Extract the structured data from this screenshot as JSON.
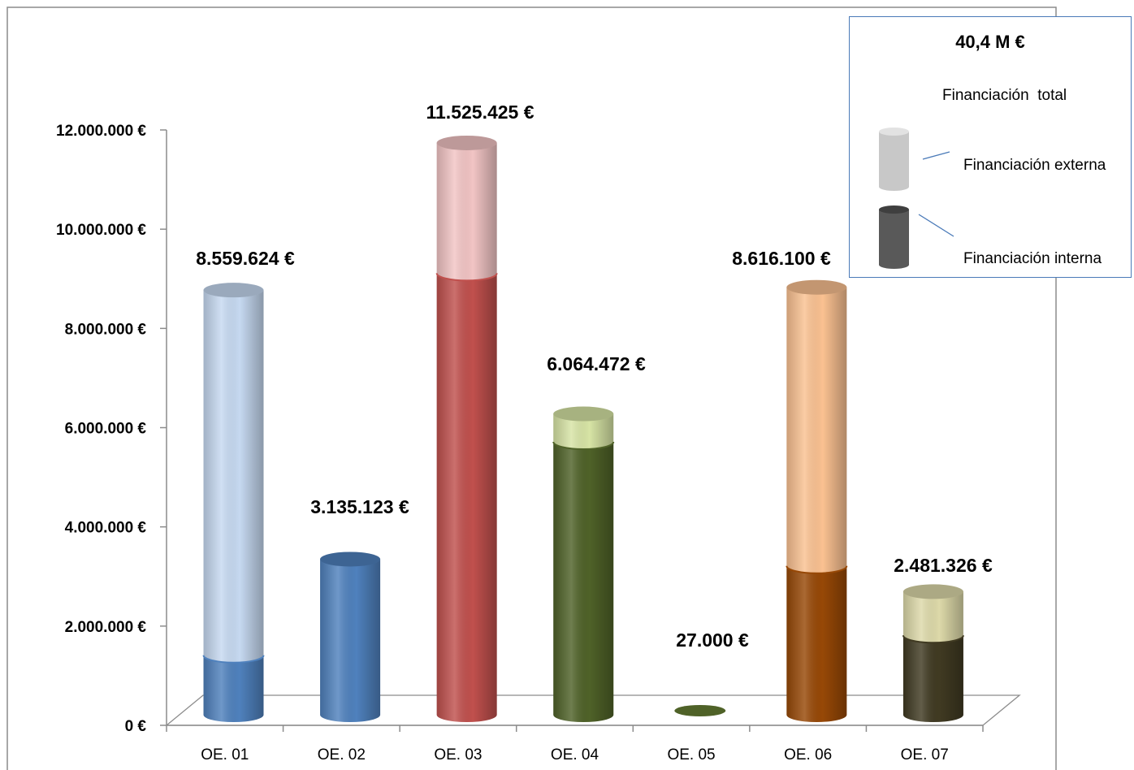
{
  "chart_data": {
    "type": "bar",
    "style": "3d-cylinder-stacked",
    "categories": [
      "OE. 01",
      "OE. 02",
      "OE. 03",
      "OE. 04",
      "OE. 05",
      "OE. 06",
      "OE. 07"
    ],
    "series": [
      {
        "name": "Financiación interna",
        "values": [
          1200000,
          3135123,
          8900000,
          5500000,
          27000,
          3000000,
          1600000
        ]
      },
      {
        "name": "Financiación externa",
        "values": [
          7359624,
          0,
          2625425,
          564472,
          0,
          5616100,
          881326
        ]
      }
    ],
    "totals": [
      8559624,
      3135123,
      11525425,
      6064472,
      27000,
      8616100,
      2481326
    ],
    "total_labels": [
      "8.559.624 €",
      "3.135.123 €",
      "11.525.425 €",
      "6.064.472 €",
      "27.000 €",
      "8.616.100 €",
      "2.481.326 €"
    ],
    "colors": {
      "internal": [
        "#4f81bd",
        "#4f81bd",
        "#c0504d",
        "#4f6228",
        "#4f6228",
        "#974806",
        "#403a22"
      ],
      "external": [
        "#c6d9f1",
        "#c6d9f1",
        "#f2c4c4",
        "#d7e4a5",
        "#d7e4a5",
        "#fac191",
        "#ddd9a9"
      ]
    },
    "y_ticks": [
      "0 €",
      "2.000.000 €",
      "4.000.000 €",
      "6.000.000 €",
      "8.000.000 €",
      "10.000.000 €",
      "12.000.000 €"
    ],
    "ylim": [
      0,
      12000000
    ],
    "grid": false,
    "legend": {
      "title": "40,4 M €",
      "subtitle": "Financiación  total",
      "external_label": "Financiación externa",
      "internal_label": "Financiación interna",
      "placement": "top-right"
    }
  }
}
